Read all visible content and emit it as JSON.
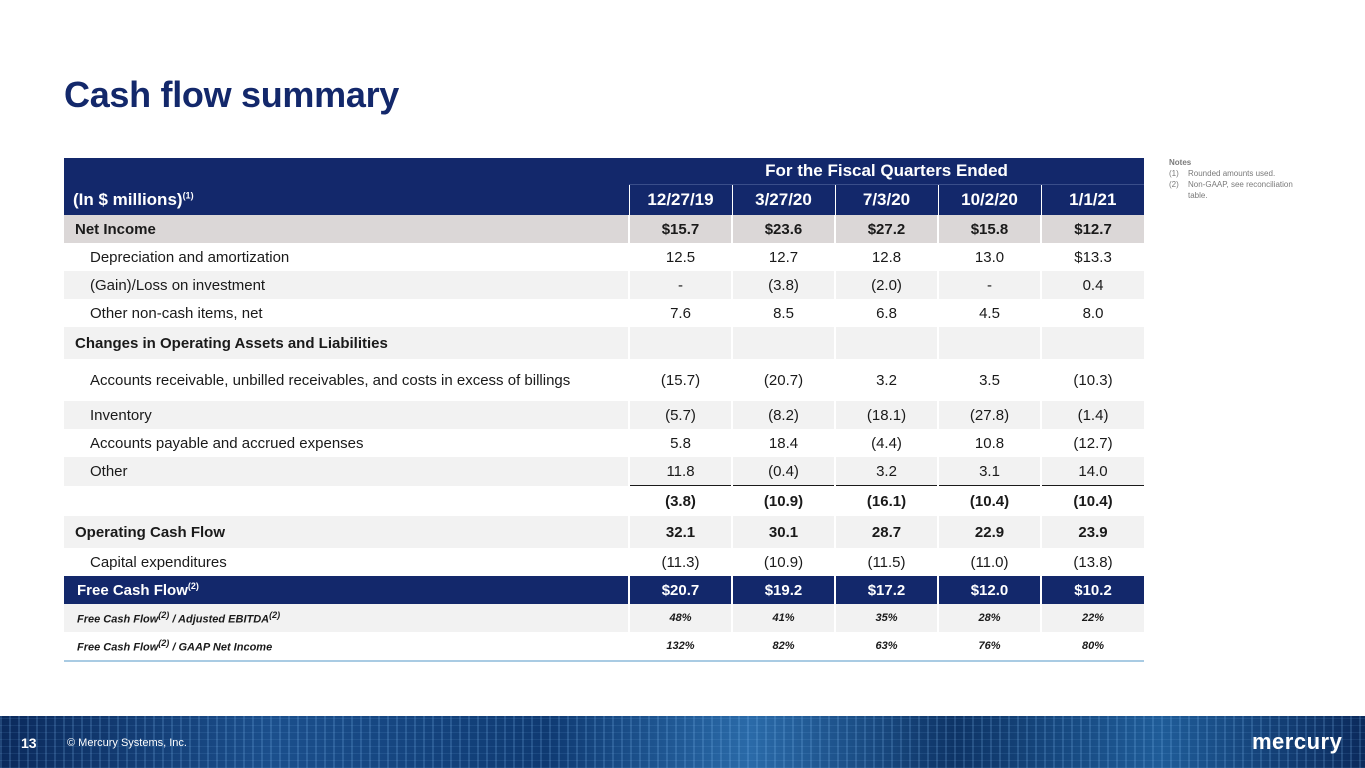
{
  "title": "Cash flow summary",
  "notes": {
    "heading": "Notes",
    "items": [
      {
        "num": "(1)",
        "text": "Rounded amounts used."
      },
      {
        "num": "(2)",
        "text": "Non-GAAP, see reconciliation table."
      }
    ]
  },
  "table": {
    "period_header": "For the Fiscal Quarters Ended",
    "unit_label": "(In $ millions)",
    "unit_sup": "(1)",
    "columns": [
      "12/27/19",
      "3/27/20",
      "7/3/20",
      "10/2/20",
      "1/1/21"
    ],
    "rows": {
      "net_income": {
        "label": "Net Income",
        "values": [
          "$15.7",
          "$23.6",
          "$27.2",
          "$15.8",
          "$12.7"
        ]
      },
      "depreciation": {
        "label": "Depreciation and amortization",
        "values": [
          "12.5",
          "12.7",
          "12.8",
          "13.0",
          "$13.3"
        ]
      },
      "gain_loss": {
        "label": "(Gain)/Loss on investment",
        "values": [
          "-",
          "(3.8)",
          "(2.0)",
          "-",
          "0.4"
        ]
      },
      "other_noncash": {
        "label": "Other non-cash items, net",
        "values": [
          "7.6",
          "8.5",
          "6.8",
          "4.5",
          "8.0"
        ]
      },
      "changes_header": {
        "label": "Changes in Operating Assets and Liabilities"
      },
      "receivables": {
        "label": "Accounts receivable, unbilled receivables, and costs in excess of billings",
        "values": [
          "(15.7)",
          "(20.7)",
          "3.2",
          "3.5",
          "(10.3)"
        ]
      },
      "inventory": {
        "label": "Inventory",
        "values": [
          "(5.7)",
          "(8.2)",
          "(18.1)",
          "(27.8)",
          "(1.4)"
        ]
      },
      "payables": {
        "label": "Accounts payable and accrued expenses",
        "values": [
          "5.8",
          "18.4",
          "(4.4)",
          "10.8",
          "(12.7)"
        ]
      },
      "other": {
        "label": "Other",
        "values": [
          "11.8",
          "(0.4)",
          "3.2",
          "3.1",
          "14.0"
        ]
      },
      "subtotal": {
        "values": [
          "(3.8)",
          "(10.9)",
          "(16.1)",
          "(10.4)",
          "(10.4)"
        ]
      },
      "operating_cash_flow": {
        "label": "Operating Cash Flow",
        "values": [
          "32.1",
          "30.1",
          "28.7",
          "22.9",
          "23.9"
        ]
      },
      "capex": {
        "label": "Capital expenditures",
        "values": [
          "(11.3)",
          "(10.9)",
          "(11.5)",
          "(11.0)",
          "(13.8)"
        ]
      },
      "free_cash_flow": {
        "label": "Free Cash Flow",
        "sup": "(2)",
        "values": [
          "$20.7",
          "$19.2",
          "$17.2",
          "$12.0",
          "$10.2"
        ]
      },
      "fcf_ebitda": {
        "label_a": "Free Cash Flow",
        "sup_a": "(2)",
        "label_b": " / Adjusted EBITDA",
        "sup_b": "(2)",
        "values": [
          "48%",
          "41%",
          "35%",
          "28%",
          "22%"
        ]
      },
      "fcf_net_income": {
        "label_a": "Free Cash Flow",
        "sup_a": "(2)",
        "label_b": " / GAAP Net Income",
        "values": [
          "132%",
          "82%",
          "63%",
          "76%",
          "80%"
        ]
      }
    }
  },
  "footer": {
    "page_number": "13",
    "copyright": "© Mercury Systems, Inc.",
    "logo_text": "mercury"
  }
}
